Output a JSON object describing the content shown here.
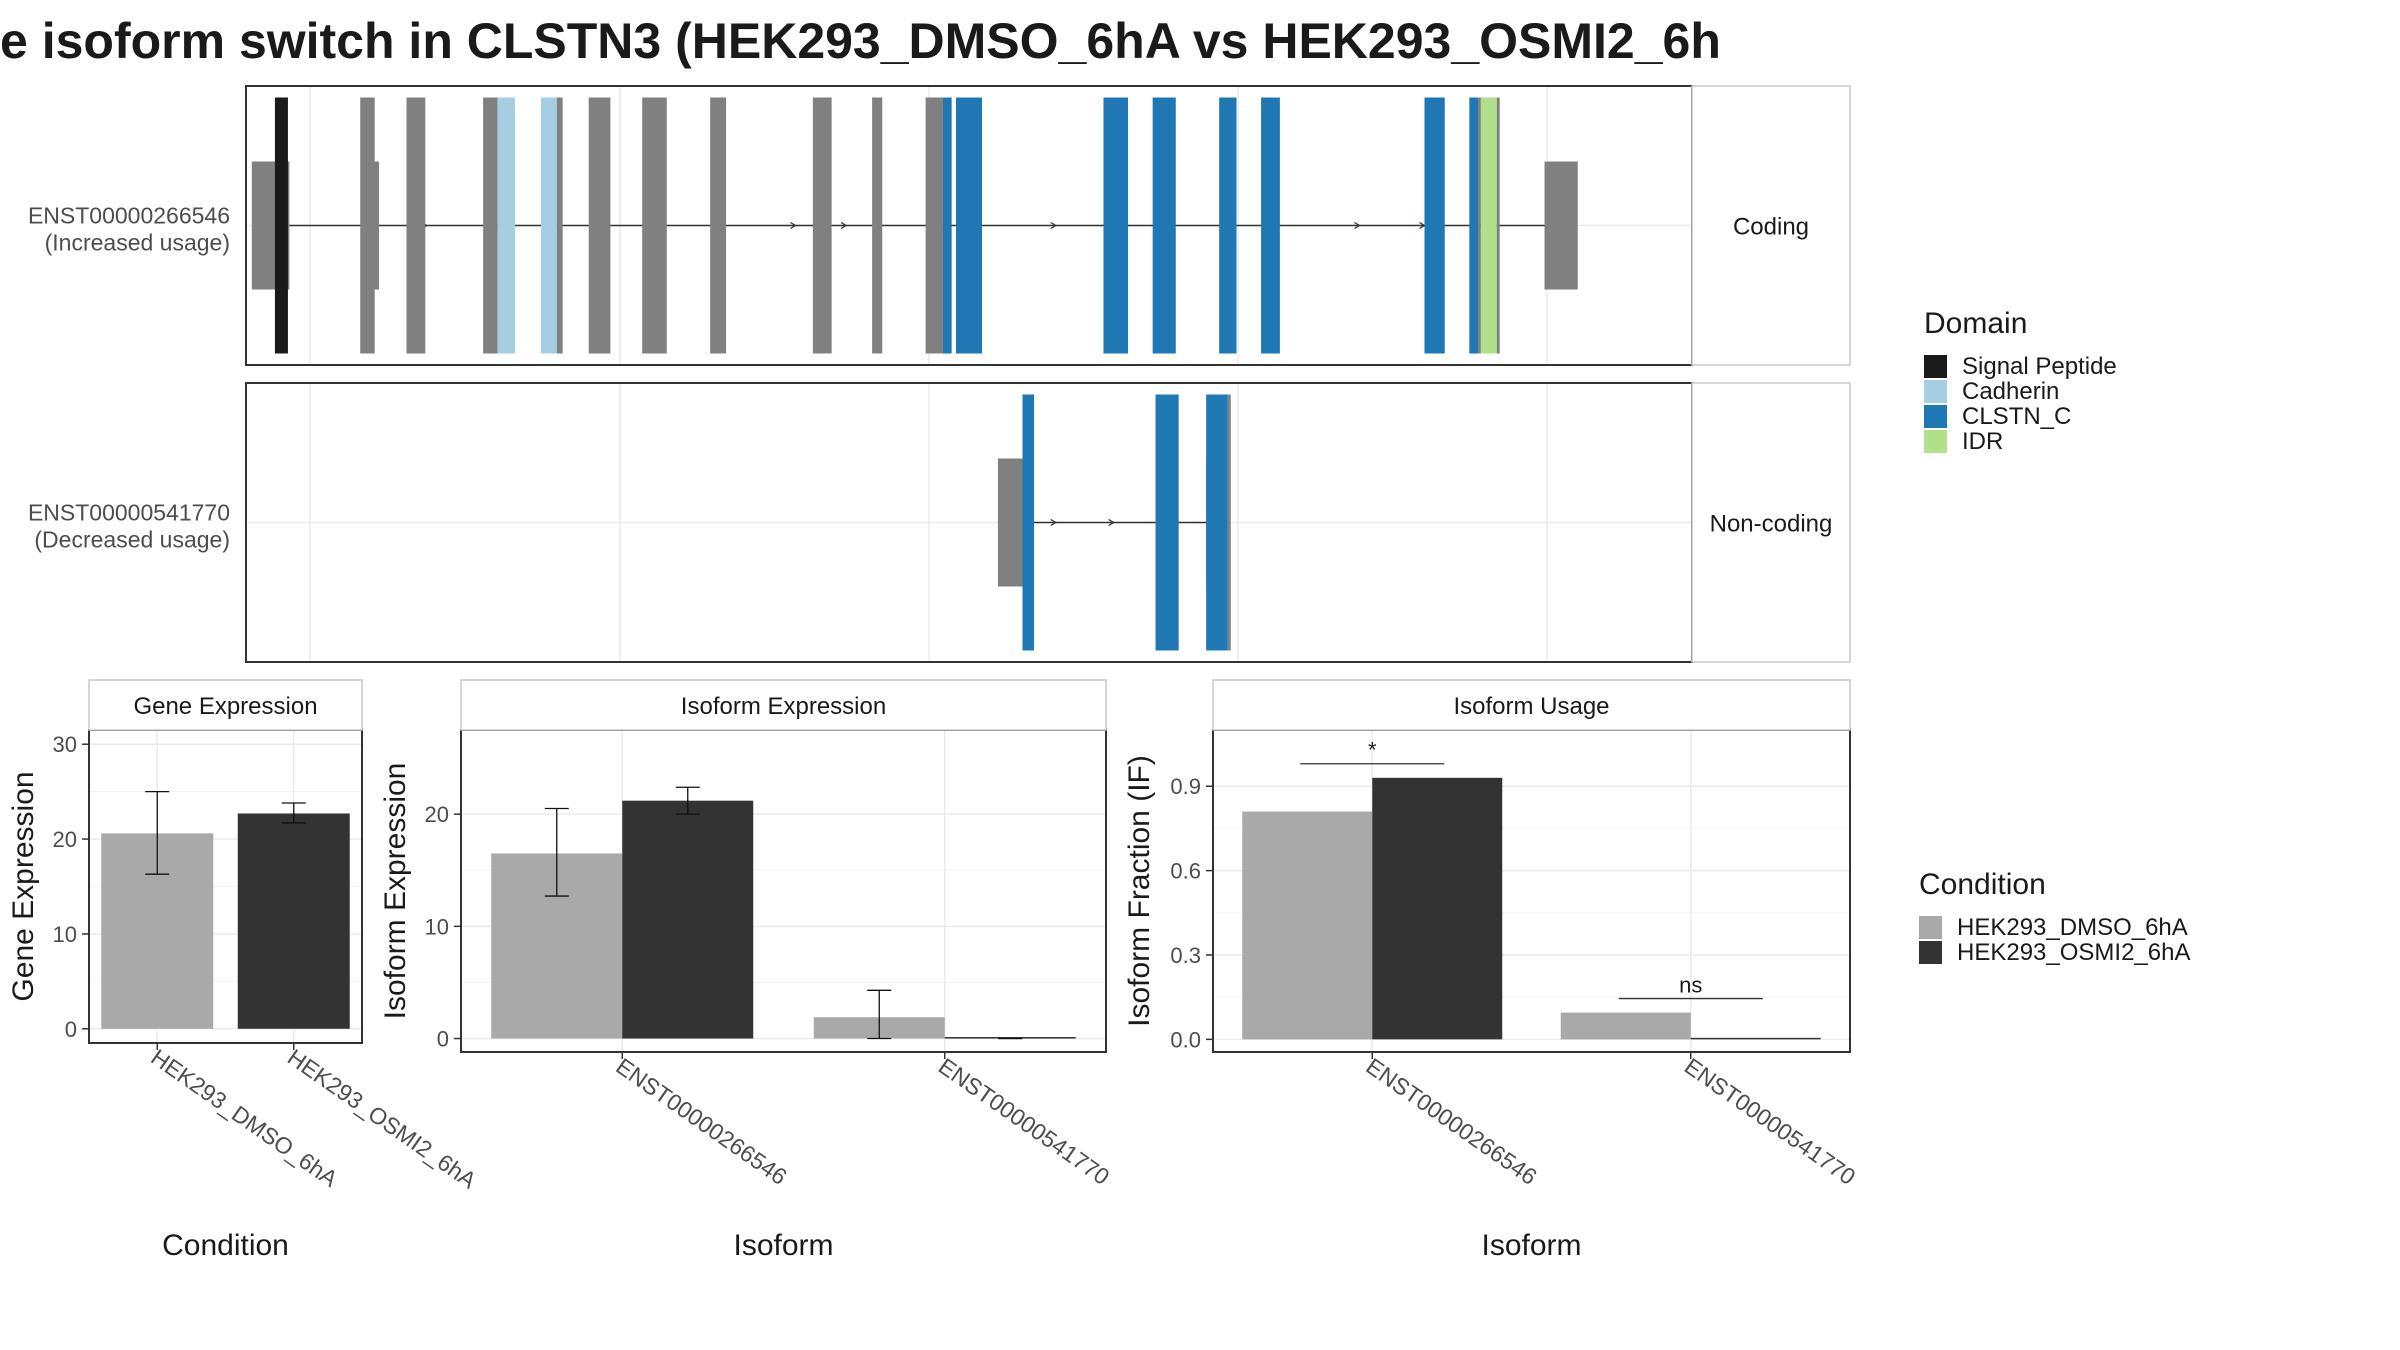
{
  "title": "e isoform switch in CLSTN3 (HEK293_DMSO_6hA vs HEK293_OSMI2_6h",
  "colors": {
    "dmso": "#a9a9a9",
    "osmi2": "#333333",
    "utr": "#808080",
    "signal_peptide": "#1a1a1a",
    "cadherin": "#a6cee3",
    "clstn_c": "#1f78b4",
    "idr": "#b2df8a",
    "grid": "#ebebeb",
    "frame": "#333333"
  },
  "isoform_panels": [
    {
      "id": "ENST00000266546",
      "note": "(Increased usage)",
      "strip": "Coding"
    },
    {
      "id": "ENST00000541770",
      "note": "(Decreased usage)",
      "strip": "Non-coding"
    }
  ],
  "structure": {
    "x_range": [
      0,
      1000
    ],
    "tracks": [
      {
        "utr": [
          [
            4,
            30
          ],
          [
            87,
            92
          ],
          [
            898,
            921
          ]
        ],
        "line": [
          30,
          898
        ],
        "exons": [
          {
            "x": [
              20,
              29
            ],
            "domain": "sig"
          },
          {
            "x": [
              79,
              89
            ],
            "domain": "none"
          },
          {
            "x": [
              111,
              124
            ],
            "domain": "none"
          },
          {
            "x": [
              164,
              174
            ],
            "domain": "none"
          },
          {
            "x": [
              174,
              186
            ],
            "domain": "cad"
          },
          {
            "x": [
              204,
              215
            ],
            "domain": "cad"
          },
          {
            "x": [
              215,
              219
            ],
            "domain": "none"
          },
          {
            "x": [
              237,
              252
            ],
            "domain": "none"
          },
          {
            "x": [
              274,
              291
            ],
            "domain": "none"
          },
          {
            "x": [
              321,
              332
            ],
            "domain": "none"
          },
          {
            "x": [
              392,
              405
            ],
            "domain": "none"
          },
          {
            "x": [
              433,
              440
            ],
            "domain": "none"
          },
          {
            "x": [
              470,
              482
            ],
            "domain": "none"
          },
          {
            "x": [
              482,
              488
            ],
            "domain": "clstn"
          },
          {
            "x": [
              491,
              509
            ],
            "domain": "clstn"
          },
          {
            "x": [
              593,
              610
            ],
            "domain": "clstn"
          },
          {
            "x": [
              627,
              643
            ],
            "domain": "clstn"
          },
          {
            "x": [
              673,
              685
            ],
            "domain": "clstn"
          },
          {
            "x": [
              702,
              715
            ],
            "domain": "clstn"
          },
          {
            "x": [
              815,
              829
            ],
            "domain": "clstn"
          },
          {
            "x": [
              846,
              852
            ],
            "domain": "clstn"
          },
          {
            "x": [
              852,
              854
            ],
            "domain": "none"
          },
          {
            "x": [
              854,
              865
            ],
            "domain": "idr"
          },
          {
            "x": [
              865,
              867
            ],
            "domain": "none"
          }
        ],
        "arrows": [
          90,
          125,
          380,
          415,
          560,
          600,
          770,
          815
        ]
      },
      {
        "utr": [
          [
            520,
            537
          ],
          [
            664,
            666
          ]
        ],
        "line": [
          537,
          664
        ],
        "exons": [
          {
            "x": [
              537,
              545
            ],
            "domain": "clstn"
          },
          {
            "x": [
              629,
              645
            ],
            "domain": "clstn"
          },
          {
            "x": [
              664,
              679
            ],
            "domain": "clstn"
          },
          {
            "x": [
              679,
              681
            ],
            "domain": "none"
          }
        ],
        "arrows": [
          560,
          600
        ]
      }
    ]
  },
  "domain_legend": {
    "title": "Domain",
    "items": [
      {
        "label": "Signal Peptide",
        "color": "#1a1a1a"
      },
      {
        "label": "Cadherin",
        "color": "#a6cee3"
      },
      {
        "label": "CLSTN_C",
        "color": "#1f78b4"
      },
      {
        "label": "IDR",
        "color": "#b2df8a"
      }
    ]
  },
  "condition_legend": {
    "title": "Condition",
    "items": [
      {
        "label": "HEK293_DMSO_6hA",
        "color": "#a9a9a9"
      },
      {
        "label": "HEK293_OSMI2_6hA",
        "color": "#333333"
      }
    ]
  },
  "chart_data": [
    {
      "type": "bar",
      "title": "Gene Expression",
      "xlabel": "Condition",
      "ylabel": "Gene Expression",
      "ylim": [
        -1.5,
        31.5
      ],
      "yticks": [
        0,
        10,
        20,
        30
      ],
      "categories": [
        "HEK293_DMSO_6hA",
        "HEK293_OSMI2_6hA"
      ],
      "values": [
        20.6,
        22.7
      ],
      "error": [
        [
          16.3,
          25.0
        ],
        [
          21.7,
          23.8
        ]
      ],
      "grid": true
    },
    {
      "type": "bar",
      "title": "Isoform Expression",
      "xlabel": "Isoform",
      "ylabel": "Isoform Expression",
      "ylim": [
        -1.2,
        27.5
      ],
      "yticks": [
        0,
        10,
        20
      ],
      "categories": [
        "ENST00000266546",
        "ENST00000541770"
      ],
      "series": [
        {
          "name": "HEK293_DMSO_6hA",
          "values": [
            16.5,
            1.9
          ],
          "error": [
            [
              12.7,
              20.5
            ],
            [
              0.0,
              4.3
            ]
          ]
        },
        {
          "name": "HEK293_OSMI2_6hA",
          "values": [
            21.2,
            0.0
          ],
          "error": [
            [
              20.0,
              22.4
            ],
            [
              0.0,
              0.0
            ]
          ]
        }
      ],
      "grid": true
    },
    {
      "type": "bar",
      "title": "Isoform Usage",
      "xlabel": "Isoform",
      "ylabel": "Isoform Fraction (IF)",
      "ylim": [
        -0.045,
        1.1
      ],
      "yticks": [
        "0.0",
        "0.3",
        "0.6",
        "0.9"
      ],
      "categories": [
        "ENST00000266546",
        "ENST00000541770"
      ],
      "series": [
        {
          "name": "HEK293_DMSO_6hA",
          "values": [
            0.81,
            0.095
          ]
        },
        {
          "name": "HEK293_OSMI2_6hA",
          "values": [
            0.93,
            0.0
          ]
        }
      ],
      "significance": [
        {
          "category": "ENST00000266546",
          "label": "*",
          "y": 0.98
        },
        {
          "category": "ENST00000541770",
          "label": "ns",
          "y": 0.145
        }
      ],
      "grid": true
    }
  ]
}
